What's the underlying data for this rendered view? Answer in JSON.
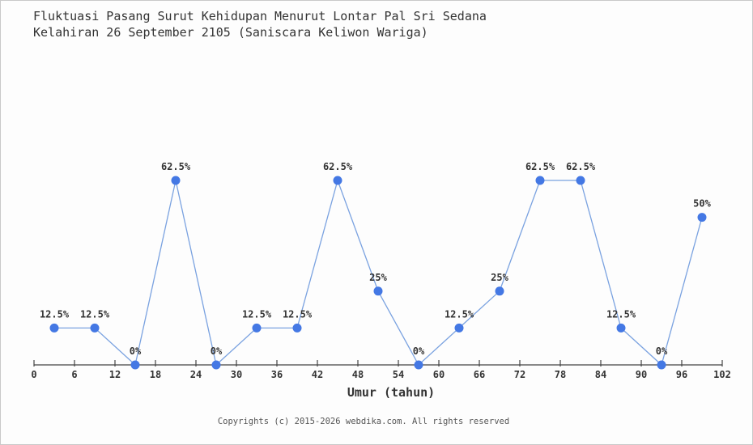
{
  "header": {
    "title_line1": "Fluktuasi Pasang Surut Kehidupan Menurut Lontar Pal Sri Sedana",
    "title_line2": "Kelahiran 26 September 2105 (Saniscara Keliwon Wariga)"
  },
  "chart_data": {
    "type": "line",
    "title": "Fluktuasi Pasang Surut Kehidupan Menurut Lontar Pal Sri Sedana Kelahiran 26 September 2105 (Saniscara Keliwon Wariga)",
    "xlabel": "Umur (tahun)",
    "ylabel": "",
    "x": [
      3,
      9,
      15,
      21,
      27,
      33,
      39,
      45,
      51,
      57,
      63,
      69,
      75,
      81,
      87,
      93,
      99
    ],
    "values": [
      12.5,
      12.5,
      0,
      62.5,
      0,
      12.5,
      12.5,
      62.5,
      25,
      0,
      12.5,
      25,
      62.5,
      62.5,
      12.5,
      0,
      50
    ],
    "point_labels": [
      "12.5%",
      "12.5%",
      "0%",
      "62.5%",
      "0%",
      "12.5%",
      "12.5%",
      "62.5%",
      "25%",
      "0%",
      "12.5%",
      "25%",
      "62.5%",
      "62.5%",
      "12.5%",
      "0%",
      "50%"
    ],
    "x_ticks": [
      0,
      6,
      12,
      18,
      24,
      30,
      36,
      42,
      48,
      54,
      60,
      66,
      72,
      78,
      84,
      90,
      96,
      102
    ],
    "xlim": [
      0,
      102
    ],
    "ylim": [
      0,
      70
    ],
    "grid": false,
    "legend": "none",
    "line_color": "#7aa2e0",
    "marker_color": "#4478e4",
    "axis_color": "#444444",
    "label_color": "#333333"
  },
  "footer": {
    "copyright": "Copyrights (c) 2015-2026 webdika.com. All rights reserved"
  }
}
